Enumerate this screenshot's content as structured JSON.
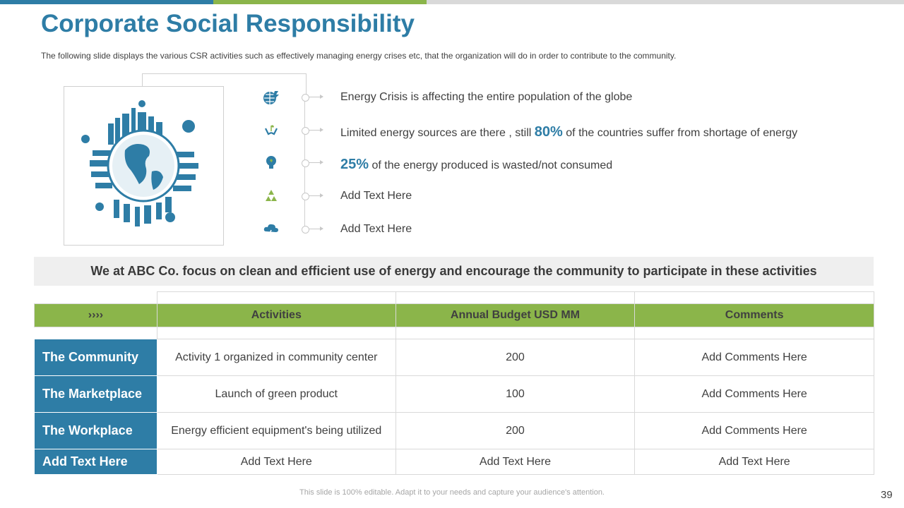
{
  "slide": {
    "title": "Corporate Social Responsibility",
    "subtitle": "The following  slide displays the various  CSR activities such as effectively  managing energy crises etc, that the organization will do in order to contribute to the community.",
    "accent_blue": "#2e7da6",
    "accent_green": "#8bb54a"
  },
  "illustration": {
    "icon": "globe-eco-city-icon"
  },
  "bullets": [
    {
      "icon": "globe-energy-icon",
      "pre": "",
      "highlight": "",
      "text": "Energy Crisis is affecting the entire population of the globe"
    },
    {
      "icon": "hands-plant-icon",
      "pre": "Limited energy sources are there , still ",
      "highlight": "80%",
      "text": " of the countries suffer from shortage of energy"
    },
    {
      "icon": "lightbulb-icon",
      "pre": "",
      "highlight": "25%",
      "text": " of the energy produced is wasted/not consumed"
    },
    {
      "icon": "recycle-icon",
      "pre": "",
      "highlight": "",
      "text": "Add Text Here"
    },
    {
      "icon": "storm-cloud-icon",
      "pre": "",
      "highlight": "",
      "text": "Add Text Here"
    }
  ],
  "focus_statement": "We at ABC Co. focus on clean and efficient use of energy and encourage the community to participate in these activities",
  "table": {
    "marker": "››››",
    "headers": [
      "Activities",
      "Annual Budget  USD MM",
      "Comments"
    ],
    "rows": [
      {
        "label": "The Community",
        "activity": "Activity 1 organized in community center",
        "budget": "200",
        "comment": "Add Comments Here"
      },
      {
        "label": "The Marketplace",
        "activity": "Launch of green product",
        "budget": "100",
        "comment": "Add Comments Here"
      },
      {
        "label": "The Workplace",
        "activity": "Energy efficient equipment's being utilized",
        "budget": "200",
        "comment": "Add Comments Here"
      },
      {
        "label": "Add Text Here",
        "activity": "Add Text Here",
        "budget": "Add Text Here",
        "comment": "Add Text Here"
      }
    ]
  },
  "footer": "This slide is 100% editable. Adapt it to your needs and capture your audience's attention.",
  "page_number": "39"
}
